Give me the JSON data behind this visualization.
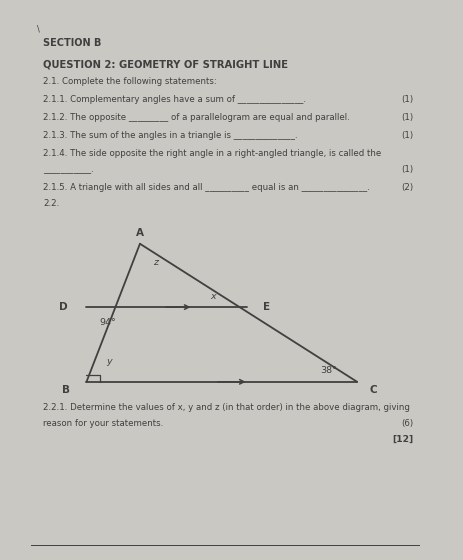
{
  "bg_color": "#cac8c2",
  "paper_color": "#f0eeea",
  "section_header": "SECTION B",
  "question_header": "QUESTION 2: GEOMETRY OF STRAIGHT LINE",
  "q21_text": "2.1. Complete the following statements:",
  "q211": "2.1.1. Complementary angles have a sum of _______________.",
  "q212": "2.1.2. The opposite _________ of a parallelogram are equal and parallel.",
  "q213": "2.1.3. The sum of the angles in a triangle is ______________.",
  "q214a": "2.1.4. The side opposite the right angle in a right-angled triangle, is called the",
  "q214b": "___________.",
  "q215": "2.1.5. A triangle with all sides and all __________ equal is an _______________.",
  "q22": "2.2.",
  "q221": "2.2.1. Determine the values of x, y and z (in that order) in the above diagram, giving",
  "q221b": "reason for your statements.",
  "marks_211": "(1)",
  "marks_212": "(1)",
  "marks_213": "(1)",
  "marks_214": "(1)",
  "marks_215": "(2)",
  "marks_221": "(6)",
  "total": "[12]",
  "text_color": "#404040",
  "line_color": "#404040",
  "diag": {
    "A": [
      0.28,
      0.93
    ],
    "B": [
      0.12,
      0.08
    ],
    "C": [
      0.93,
      0.08
    ],
    "D": [
      0.12,
      0.54
    ],
    "E": [
      0.6,
      0.54
    ],
    "angle_D": "94°",
    "angle_C": "38°",
    "lbl_x": "x",
    "lbl_y": "y",
    "lbl_z": "z"
  }
}
